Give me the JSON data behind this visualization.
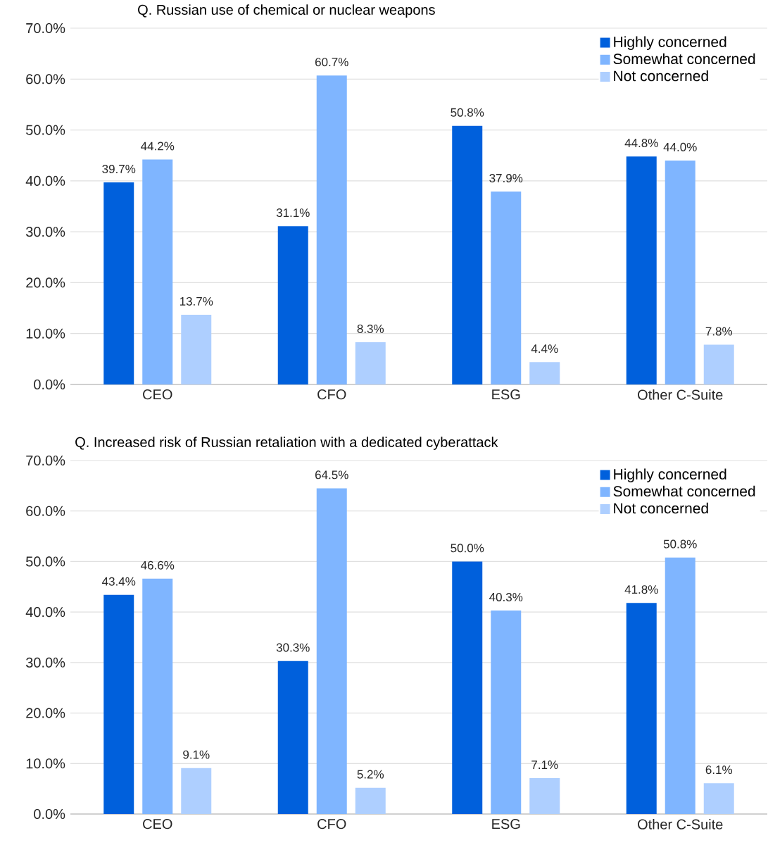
{
  "chart_data": [
    {
      "type": "bar",
      "title": "Q. Russian use of chemical or nuclear weapons",
      "categories": [
        "CEO",
        "CFO",
        "ESG",
        "Other C-Suite"
      ],
      "series": [
        {
          "name": "Highly concerned",
          "color": "#0060dc",
          "values": [
            39.7,
            31.1,
            50.8,
            44.8
          ],
          "value_labels": [
            "39.7%",
            "31.1%",
            "50.8%",
            "44.8%"
          ]
        },
        {
          "name": "Somewhat concerned",
          "color": "#7fb5ff",
          "values": [
            44.2,
            60.7,
            37.9,
            44.0
          ],
          "value_labels": [
            "44.2%",
            "60.7%",
            "37.9%",
            "44.0%"
          ]
        },
        {
          "name": "Not concerned",
          "color": "#aecfff",
          "values": [
            13.7,
            8.3,
            4.4,
            7.8
          ],
          "value_labels": [
            "13.7%",
            "8.3%",
            "4.4%",
            "7.8%"
          ]
        }
      ],
      "ylim": [
        0,
        70
      ],
      "yticks": [
        {
          "value": 0,
          "label": "0.0%"
        },
        {
          "value": 10,
          "label": "10.0%"
        },
        {
          "value": 20,
          "label": "20.0%"
        },
        {
          "value": 30,
          "label": "30.0%"
        },
        {
          "value": 40,
          "label": "40.0%"
        },
        {
          "value": 50,
          "label": "50.0%"
        },
        {
          "value": 60,
          "label": "60.0%"
        },
        {
          "value": 70,
          "label": "70.0%"
        }
      ],
      "grid": "y",
      "legend": "top right"
    },
    {
      "type": "bar",
      "title": "Q. Increased risk of Russian retaliation with a dedicated cyberattack",
      "categories": [
        "CEO",
        "CFO",
        "ESG",
        "Other C-Suite"
      ],
      "series": [
        {
          "name": "Highly concerned",
          "color": "#0060dc",
          "values": [
            43.4,
            30.3,
            50.0,
            41.8
          ],
          "value_labels": [
            "43.4%",
            "30.3%",
            "50.0%",
            "41.8%"
          ]
        },
        {
          "name": "Somewhat concerned",
          "color": "#7fb5ff",
          "values": [
            46.6,
            64.5,
            40.3,
            50.8
          ],
          "value_labels": [
            "46.6%",
            "64.5%",
            "40.3%",
            "50.8%"
          ]
        },
        {
          "name": "Not concerned",
          "color": "#aecfff",
          "values": [
            9.1,
            5.2,
            7.1,
            6.1
          ],
          "value_labels": [
            "9.1%",
            "5.2%",
            "7.1%",
            "6.1%"
          ]
        }
      ],
      "ylim": [
        0,
        70
      ],
      "yticks": [
        {
          "value": 0,
          "label": "0.0%"
        },
        {
          "value": 10,
          "label": "10.0%"
        },
        {
          "value": 20,
          "label": "20.0%"
        },
        {
          "value": 30,
          "label": "30.0%"
        },
        {
          "value": 40,
          "label": "40.0%"
        },
        {
          "value": 50,
          "label": "50.0%"
        },
        {
          "value": 60,
          "label": "60.0%"
        },
        {
          "value": 70,
          "label": "70.0%"
        }
      ],
      "grid": "y",
      "legend": "top right"
    }
  ]
}
